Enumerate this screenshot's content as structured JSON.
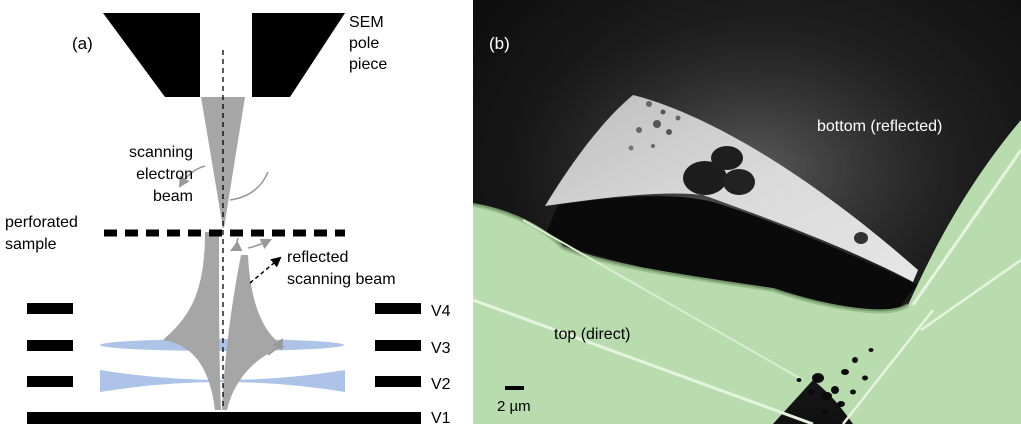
{
  "panel_a": {
    "label": "(a)",
    "pole_piece_label": [
      "SEM",
      "pole",
      "piece"
    ],
    "scanning_beam_label": [
      "scanning",
      "electron",
      "beam"
    ],
    "sample_label": [
      "perforated",
      "sample"
    ],
    "reflected_label": [
      "reflected",
      "scanning beam"
    ],
    "electrodes": [
      "V4",
      "V3",
      "V2",
      "V1"
    ],
    "colors": {
      "beam": "#a6a6a6",
      "lens": "#9fb8e3",
      "electrode": "#000000",
      "arrow": "#999999"
    }
  },
  "panel_b": {
    "label": "(b)",
    "bottom_label": "bottom (reflected)",
    "top_label": "top (direct)",
    "scale_bar_label": "2 µm",
    "colors": {
      "overlay": "#b9dcae",
      "background": "#111111",
      "bright_region": "#cfcfcf"
    }
  }
}
